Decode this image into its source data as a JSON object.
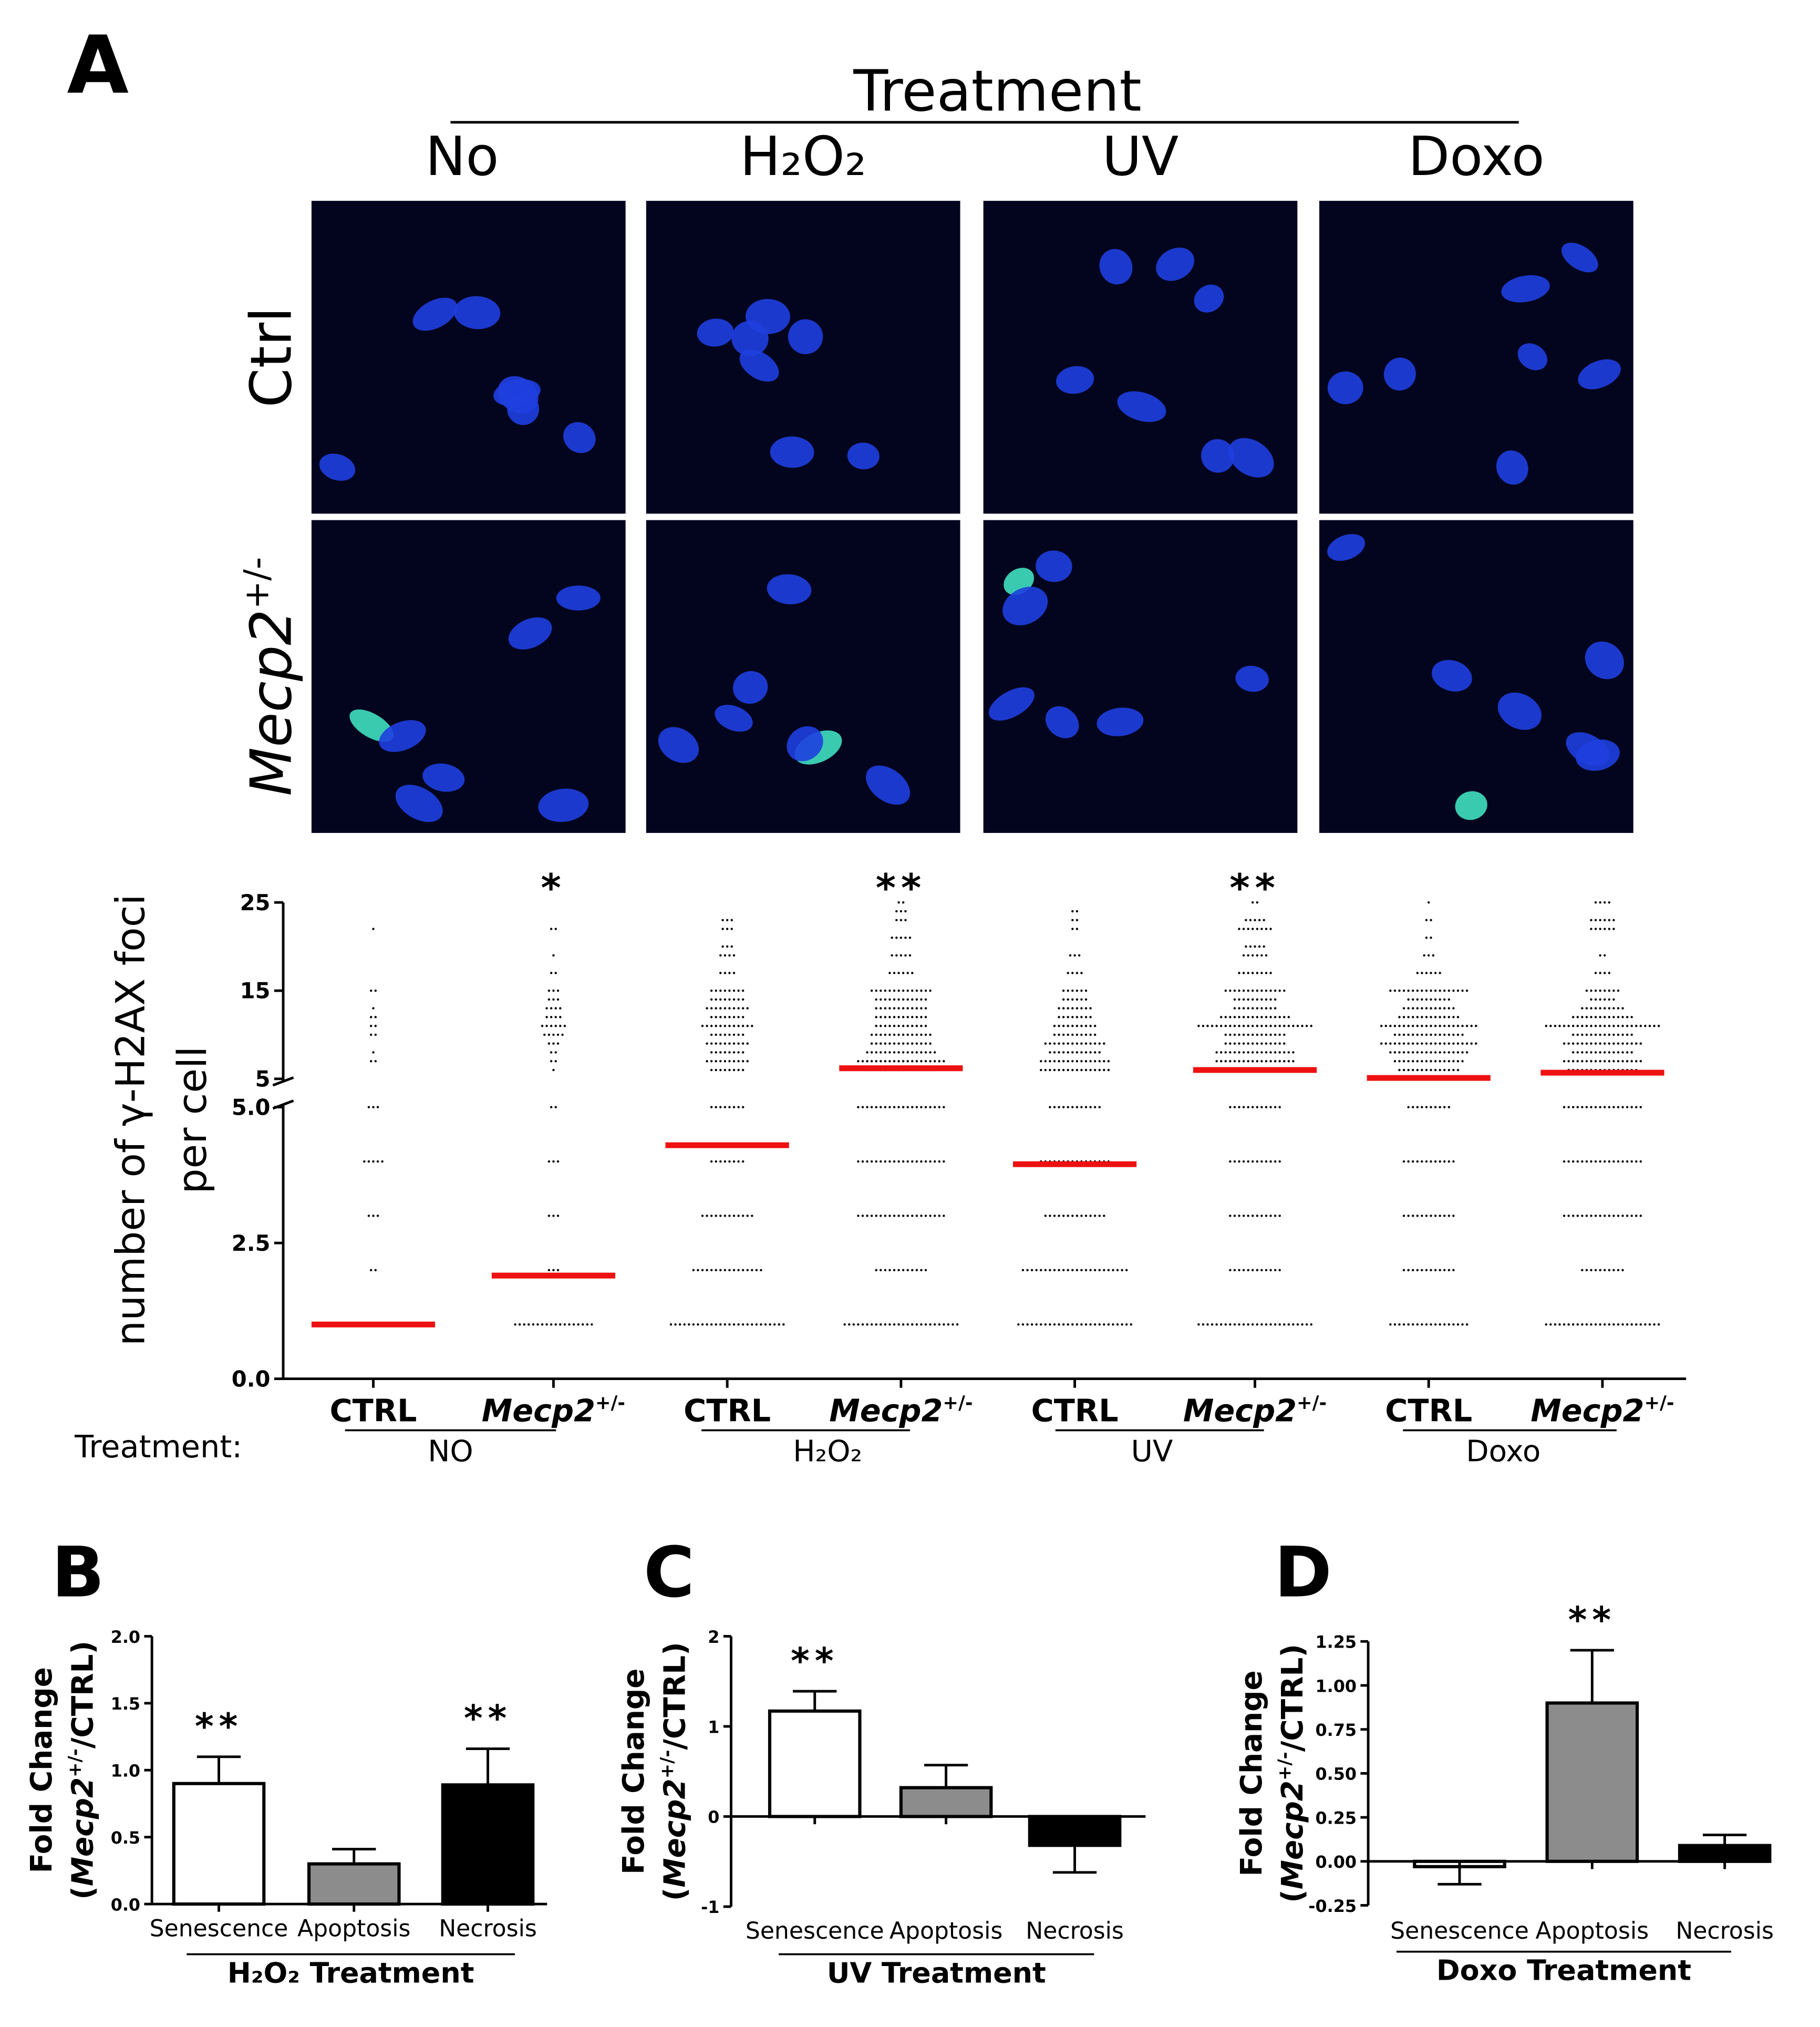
{
  "panel_a": {
    "letter": "A",
    "treatment_title": "Treatment",
    "columns": [
      "No",
      "H₂O₂",
      "UV",
      "Doxo"
    ],
    "rows": [
      "Ctrl",
      {
        "base": "Mecp2",
        "sup": "+/-"
      }
    ],
    "ylabel": [
      "number of γ-H2AX foci",
      "per cell"
    ],
    "ylim_lower": [
      0,
      5
    ],
    "yticks_lower": [
      {
        "value": 0,
        "label": "0.0"
      },
      {
        "value": 2.5,
        "label": "2.5"
      },
      {
        "value": 5,
        "label": "5.0"
      }
    ],
    "ylim_upper": [
      5,
      25
    ],
    "yticks_upper": [
      5,
      15,
      25
    ],
    "treatment_row_label": "Treatment:",
    "treatments": [
      "NO",
      "H₂O₂",
      "UV",
      "Doxo"
    ],
    "groups": [
      {
        "label": "CTRL",
        "median": 1.0,
        "levels": [
          1,
          2,
          3,
          4,
          5,
          7,
          8,
          10,
          11,
          12,
          13,
          15,
          22
        ],
        "counts": [
          20,
          2,
          3,
          5,
          3,
          2,
          1,
          2,
          2,
          2,
          1,
          2,
          1
        ]
      },
      {
        "label": {
          "base": "Mecp2",
          "sup": "+/-"
        },
        "star": "*",
        "median": 1.9,
        "levels": [
          1,
          2,
          3,
          4,
          5,
          6,
          7,
          8,
          9,
          10,
          11,
          12,
          13,
          14,
          15,
          17,
          19,
          22
        ],
        "counts": [
          18,
          3,
          3,
          3,
          2,
          1,
          2,
          2,
          3,
          5,
          6,
          4,
          4,
          3,
          3,
          2,
          1,
          2
        ]
      },
      {
        "label": "CTRL",
        "median": 4.3,
        "levels": [
          1,
          2,
          3,
          4,
          5,
          6,
          7,
          8,
          9,
          10,
          11,
          12,
          13,
          14,
          15,
          17,
          19,
          20,
          22,
          23
        ],
        "counts": [
          26,
          16,
          12,
          8,
          8,
          8,
          10,
          8,
          10,
          8,
          12,
          8,
          10,
          8,
          8,
          4,
          4,
          3,
          3,
          3
        ]
      },
      {
        "label": {
          "base": "Mecp2",
          "sup": "+/-"
        },
        "star": "**",
        "median": 6.2,
        "levels": [
          1,
          2,
          3,
          4,
          5,
          6,
          7,
          8,
          9,
          10,
          11,
          12,
          13,
          14,
          15,
          17,
          19,
          21,
          23,
          24,
          25
        ],
        "counts": [
          26,
          12,
          20,
          20,
          20,
          16,
          20,
          16,
          14,
          14,
          12,
          12,
          12,
          12,
          14,
          6,
          5,
          5,
          3,
          3,
          2
        ]
      },
      {
        "label": "CTRL",
        "median": 3.95,
        "levels": [
          1,
          2,
          3,
          4,
          5,
          6,
          7,
          8,
          9,
          10,
          11,
          12,
          13,
          14,
          15,
          17,
          19,
          22,
          23,
          24
        ],
        "counts": [
          26,
          24,
          14,
          16,
          12,
          16,
          16,
          12,
          14,
          10,
          10,
          8,
          8,
          6,
          6,
          4,
          3,
          2,
          2,
          2
        ]
      },
      {
        "label": {
          "base": "Mecp2",
          "sup": "+/-"
        },
        "star": "**",
        "median": 6.0,
        "levels": [
          1,
          2,
          3,
          4,
          5,
          6,
          7,
          8,
          9,
          10,
          11,
          12,
          13,
          14,
          15,
          17,
          19,
          20,
          22,
          23,
          25
        ],
        "counts": [
          26,
          12,
          12,
          12,
          12,
          20,
          18,
          18,
          14,
          14,
          26,
          16,
          10,
          10,
          14,
          8,
          6,
          5,
          8,
          5,
          2
        ]
      },
      {
        "label": "CTRL",
        "median": 5.1,
        "levels": [
          1,
          2,
          3,
          4,
          5,
          6,
          7,
          8,
          9,
          10,
          11,
          12,
          13,
          14,
          15,
          17,
          19,
          21,
          23,
          25
        ],
        "counts": [
          18,
          12,
          12,
          12,
          10,
          14,
          16,
          18,
          22,
          16,
          22,
          14,
          12,
          10,
          18,
          6,
          3,
          2,
          2,
          1
        ]
      },
      {
        "label": {
          "base": "Mecp2",
          "sup": "+/-"
        },
        "median": 5.7,
        "levels": [
          1,
          2,
          3,
          4,
          5,
          6,
          7,
          8,
          9,
          10,
          11,
          12,
          13,
          14,
          15,
          17,
          19,
          22,
          23,
          25
        ],
        "counts": [
          26,
          10,
          18,
          18,
          18,
          16,
          18,
          14,
          18,
          14,
          26,
          14,
          10,
          6,
          8,
          4,
          2,
          6,
          6,
          4
        ]
      }
    ]
  },
  "bar_panels": [
    {
      "letter": "B",
      "ylim": [
        0,
        2
      ],
      "yticks": [
        {
          "value": 0,
          "label": "0.0"
        },
        {
          "value": 0.5,
          "label": "0.5"
        },
        {
          "value": 1,
          "label": "1.0"
        },
        {
          "value": 1.5,
          "label": "1.5"
        },
        {
          "value": 2,
          "label": "2.0"
        }
      ],
      "ylabel": [
        "Fold Change",
        {
          "prefix": "(",
          "base": "Mecp2",
          "sup": "+/-",
          "suffix": "/CTRL)"
        }
      ],
      "categories": [
        "Senescence",
        "Apoptosis",
        "Necrosis"
      ],
      "values": [
        0.9,
        0.3,
        0.89
      ],
      "errors": [
        0.2,
        0.11,
        0.27
      ],
      "colors": [
        "#ffffff",
        "#8c8c8c",
        "#000000"
      ],
      "stars": [
        "**",
        null,
        "**"
      ],
      "xtitle": "H₂O₂ Treatment"
    },
    {
      "letter": "C",
      "ylim": [
        -1,
        2
      ],
      "yticks": [
        -1,
        0,
        1,
        2
      ],
      "ylabel": [
        "Fold Change",
        {
          "prefix": "(",
          "base": "Mecp2",
          "sup": "+/-",
          "suffix": "/CTRL)"
        }
      ],
      "categories": [
        "Senescence",
        "Apoptosis",
        "Necrosis"
      ],
      "values": [
        1.17,
        0.32,
        -0.32
      ],
      "errors": [
        0.22,
        0.25,
        0.3
      ],
      "colors": [
        "#ffffff",
        "#8c8c8c",
        "#000000"
      ],
      "stars": [
        "**",
        null,
        null
      ],
      "xtitle": "UV Treatment"
    },
    {
      "letter": "D",
      "ylim": [
        -0.25,
        1.25
      ],
      "yticks": [
        {
          "value": -0.25,
          "label": "-0.25"
        },
        {
          "value": 0,
          "label": "0.00"
        },
        {
          "value": 0.25,
          "label": "0.25"
        },
        {
          "value": 0.5,
          "label": "0.50"
        },
        {
          "value": 0.75,
          "label": "0.75"
        },
        {
          "value": 1,
          "label": "1.00"
        },
        {
          "value": 1.25,
          "label": "1.25"
        }
      ],
      "ylabel": [
        "Fold Change",
        {
          "prefix": "(",
          "base": "Mecp2",
          "sup": "+/-",
          "suffix": "/CTRL)"
        }
      ],
      "categories": [
        "Senescence",
        "Apoptosis",
        "Necrosis"
      ],
      "values": [
        -0.03,
        0.9,
        0.09
      ],
      "errors": [
        0.1,
        0.3,
        0.06
      ],
      "colors": [
        "#ffffff",
        "#8c8c8c",
        "#000000"
      ],
      "stars": [
        null,
        "**",
        null
      ],
      "xtitle": "Doxo Treatment"
    }
  ]
}
